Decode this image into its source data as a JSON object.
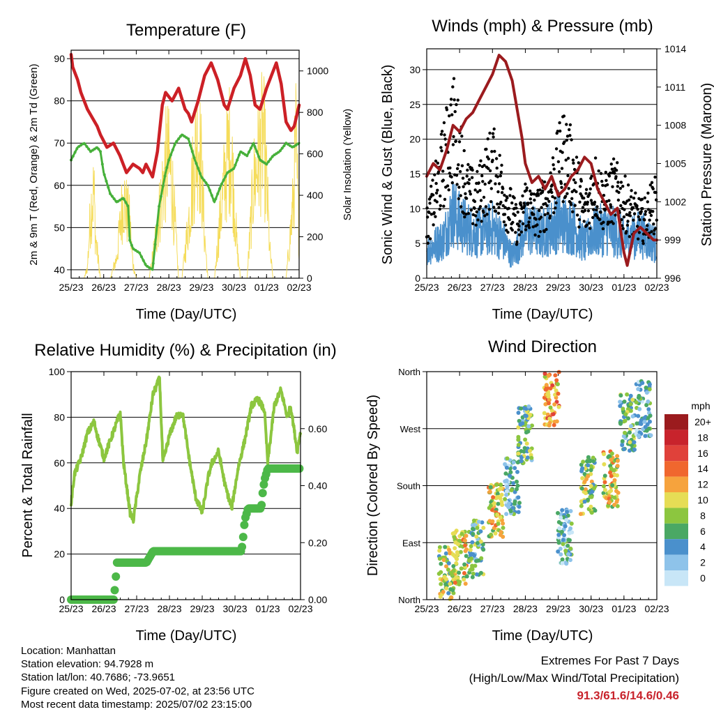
{
  "charts": {
    "temperature": {
      "title": "Temperature (F)",
      "ylabel_left": "2m & 9m T (Red, Orange) & 2m Td (Green)",
      "ylabel_right": "Solar Insolation (Yellow)",
      "xlabel": "Time (Day/UTC)"
    },
    "winds": {
      "title": "Winds (mph) & Pressure (mb)",
      "ylabel_left": "Sonic Wind & Gust (Blue, Black)",
      "ylabel_right": "Station Pressure (Maroon)",
      "xlabel": "Time (Day/UTC)"
    },
    "humidity": {
      "title": "Relative Humidity (%) & Precipitation (in)",
      "ylabel_left": "Percent & Total Rainfall",
      "xlabel": "Time (Day/UTC)"
    },
    "direction": {
      "title": "Wind Direction",
      "ylabel_left": "Direction (Colored By Speed)",
      "xlabel": "Time (Day/UTC)",
      "colorbar_title": "mph"
    }
  },
  "info": {
    "location": "Location: Manhattan",
    "elevation": "Station elevation: 94.7928 m",
    "latlon": "Station lat/lon: 40.7686; -73.9651",
    "created": "Figure created on Wed, 2025-07-02, at 23:56 UTC",
    "recent": "Most recent data timestamp: 2025/07/02 23:15:00"
  },
  "extremes": {
    "line1": "Extremes For Past 7 Days",
    "line2": "(High/Low/Max Wind/Total Precipitation)",
    "values": "91.3/61.6/14.6/0.46"
  },
  "colors": {
    "temp": "#cc2026",
    "dewpoint": "#46b03a",
    "solar": "#f5dc5a",
    "wind": "#4a90cc",
    "gust": "#000000",
    "pressure": "#9b1b1e",
    "rh": "#8cc63f",
    "precip": "#4cb848"
  },
  "chart_data": [
    {
      "type": "line",
      "title": "Temperature (F)",
      "xlabel": "Time (Day/UTC)",
      "ylabel": "2m & 9m T (Red, Orange) & 2m Td (Green)",
      "ylabel_right": "Solar Insolation (Yellow)",
      "x_ticks": [
        "25/23",
        "26/23",
        "27/23",
        "28/23",
        "29/23",
        "30/23",
        "01/23",
        "02/23"
      ],
      "xlim": [
        0,
        7
      ],
      "ylim": [
        38,
        92
      ],
      "y_ticks": [
        40,
        50,
        60,
        70,
        80,
        90
      ],
      "ylim_right": [
        0,
        1100
      ],
      "y_ticks_right": [
        0,
        200,
        400,
        600,
        800,
        1000
      ],
      "series": [
        {
          "name": "2m T",
          "x": [
            0,
            0.05,
            0.2,
            0.3,
            0.5,
            0.8,
            0.9,
            1.1,
            1.3,
            1.5,
            1.6,
            1.7,
            1.9,
            2.1,
            2.2,
            2.3,
            2.5,
            2.65,
            2.8,
            2.9,
            3.1,
            3.3,
            3.5,
            3.6,
            3.7,
            3.9,
            4.1,
            4.3,
            4.5,
            4.7,
            4.8,
            5.0,
            5.2,
            5.35,
            5.5,
            5.65,
            5.8,
            6.0,
            6.15,
            6.3,
            6.45,
            6.6,
            6.75,
            6.85,
            7.0
          ],
          "y": [
            91,
            88,
            85,
            82,
            78,
            74,
            72,
            69,
            70,
            67,
            65,
            63,
            65,
            64,
            63,
            65,
            62,
            68,
            79,
            82,
            80,
            83,
            78,
            77,
            75,
            80,
            86,
            89,
            85,
            79,
            78,
            83,
            86,
            90,
            86,
            79,
            78,
            83,
            86,
            89,
            84,
            75,
            73,
            74,
            79
          ]
        },
        {
          "name": "2m Td",
          "x": [
            0,
            0.2,
            0.4,
            0.6,
            0.8,
            0.9,
            1.0,
            1.2,
            1.4,
            1.6,
            1.75,
            1.8,
            1.9,
            2.1,
            2.3,
            2.5,
            2.7,
            2.9,
            3.0,
            3.2,
            3.4,
            3.6,
            3.8,
            4.0,
            4.2,
            4.4,
            4.6,
            4.8,
            5.0,
            5.2,
            5.4,
            5.6,
            5.8,
            6.0,
            6.2,
            6.4,
            6.6,
            6.8,
            7.0
          ],
          "y": [
            66,
            69,
            70,
            68,
            69,
            68,
            63,
            58,
            56,
            57,
            55,
            47,
            45,
            44,
            41,
            40,
            55,
            63,
            66,
            70,
            72,
            71,
            66,
            62,
            60,
            56,
            60,
            63,
            64,
            68,
            67,
            70,
            66,
            65,
            67,
            68,
            70,
            69,
            70
          ]
        },
        {
          "name": "Solar Insolation",
          "axis": "right",
          "x": [
            0,
            0.4,
            0.5,
            0.6,
            0.7,
            0.75,
            0.8,
            0.9,
            1.0,
            1.2,
            1.4,
            1.6,
            1.8,
            1.9,
            2.0,
            2.1,
            2.2,
            2.4,
            2.6,
            2.8,
            2.95,
            3.1,
            3.2,
            3.3,
            3.4,
            3.6,
            3.8,
            3.9,
            4.0,
            4.1,
            4.2,
            4.4,
            4.6,
            4.8,
            4.9,
            5.0,
            5.1,
            5.2,
            5.4,
            5.6,
            5.8,
            5.9,
            6.0,
            6.1,
            6.2,
            6.4,
            6.6,
            6.8,
            6.9,
            7.0
          ],
          "y": [
            0,
            0,
            80,
            500,
            650,
            300,
            200,
            0,
            0,
            0,
            150,
            600,
            400,
            100,
            0,
            0,
            0,
            0,
            300,
            650,
            900,
            700,
            350,
            0,
            0,
            400,
            900,
            1080,
            800,
            300,
            0,
            0,
            500,
            900,
            1000,
            600,
            200,
            0,
            0,
            700,
            950,
            1050,
            700,
            200,
            0,
            0,
            0,
            500,
            1000,
            300
          ]
        }
      ]
    },
    {
      "type": "line",
      "title": "Winds (mph) & Pressure (mb)",
      "xlabel": "Time (Day/UTC)",
      "ylabel": "Sonic Wind & Gust (Blue, Black)",
      "ylabel_right": "Station Pressure (Maroon)",
      "x_ticks": [
        "25/23",
        "26/23",
        "27/23",
        "28/23",
        "29/23",
        "30/23",
        "01/23",
        "02/23"
      ],
      "xlim": [
        0,
        7
      ],
      "ylim": [
        0,
        33
      ],
      "y_ticks": [
        0,
        5,
        10,
        15,
        20,
        25,
        30
      ],
      "ylim_right": [
        996,
        1014
      ],
      "y_ticks_right": [
        996,
        999,
        1002,
        1005,
        1008,
        1011,
        1014
      ],
      "series": [
        {
          "name": "Sonic Wind",
          "x": [
            0,
            0.5,
            0.8,
            1.0,
            1.5,
            2.0,
            2.3,
            2.6,
            2.8,
            3.0,
            3.5,
            4.0,
            4.5,
            4.8,
            5.0,
            5.5,
            6.0,
            6.5,
            7.0
          ],
          "y": [
            5,
            7,
            12,
            10,
            8,
            9,
            7,
            4,
            6,
            9,
            8,
            10,
            9,
            6,
            8,
            9,
            7,
            8,
            6
          ]
        },
        {
          "name": "Gust",
          "x": [
            0,
            0.3,
            0.5,
            0.8,
            1.0,
            1.2,
            1.5,
            1.8,
            2.0,
            2.3,
            2.6,
            2.8,
            3.0,
            3.3,
            3.6,
            3.9,
            4.2,
            4.5,
            4.8,
            5.1,
            5.4,
            5.7,
            6.0,
            6.3,
            6.6,
            6.8,
            7.0
          ],
          "y": [
            8,
            14,
            18,
            24,
            20,
            14,
            12,
            16,
            18,
            14,
            10,
            8,
            12,
            10,
            12,
            16,
            20,
            16,
            10,
            15,
            12,
            14,
            12,
            10,
            9,
            11,
            12
          ]
        },
        {
          "name": "Station Pressure",
          "axis": "right",
          "x": [
            0,
            0.2,
            0.4,
            0.6,
            0.8,
            1.0,
            1.2,
            1.4,
            1.6,
            1.8,
            2.0,
            2.2,
            2.4,
            2.6,
            2.7,
            2.9,
            3.0,
            3.2,
            3.4,
            3.6,
            3.8,
            4.0,
            4.2,
            4.4,
            4.6,
            4.8,
            5.0,
            5.2,
            5.4,
            5.6,
            5.8,
            6.0,
            6.1,
            6.3,
            6.5,
            6.7,
            6.9,
            7.0
          ],
          "y": [
            1004,
            1005,
            1004.5,
            1006,
            1008,
            1007.5,
            1008.5,
            1009,
            1010,
            1011,
            1012,
            1013.5,
            1013,
            1011.5,
            1010,
            1007,
            1005,
            1003.5,
            1004,
            1003,
            1004,
            1002.5,
            1003,
            1004,
            1004.5,
            1005.5,
            1005,
            1003,
            1002,
            1001,
            1001.5,
            998,
            997,
            999.5,
            1000,
            999.5,
            999,
            999
          ]
        }
      ]
    },
    {
      "type": "line",
      "title": "Relative Humidity (%) & Precipitation (in)",
      "xlabel": "Time (Day/UTC)",
      "ylabel": "Percent & Total Rainfall",
      "x_ticks": [
        "25/23",
        "26/23",
        "27/23",
        "28/23",
        "29/23",
        "30/23",
        "01/23",
        "02/23"
      ],
      "xlim": [
        0,
        7
      ],
      "ylim": [
        0,
        100
      ],
      "y_ticks": [
        0,
        20,
        40,
        60,
        80,
        100
      ],
      "ylim_right": [
        0,
        0.8
      ],
      "y_ticks_right": [
        "0.00",
        "0.20",
        "0.40",
        "0.60"
      ],
      "series": [
        {
          "name": "Relative Humidity",
          "x": [
            0,
            0.1,
            0.3,
            0.5,
            0.7,
            0.8,
            1.0,
            1.2,
            1.4,
            1.5,
            1.6,
            1.8,
            1.9,
            2.1,
            2.3,
            2.5,
            2.7,
            2.8,
            3.0,
            3.2,
            3.4,
            3.6,
            3.8,
            4.0,
            4.2,
            4.3,
            4.5,
            4.7,
            4.9,
            5.1,
            5.3,
            5.5,
            5.7,
            5.9,
            6.0,
            6.2,
            6.4,
            6.6,
            6.7,
            6.8,
            6.9,
            7.0
          ],
          "y": [
            42,
            55,
            62,
            73,
            78,
            72,
            62,
            70,
            78,
            82,
            60,
            38,
            35,
            55,
            70,
            90,
            97,
            60,
            72,
            80,
            82,
            62,
            45,
            38,
            55,
            60,
            65,
            50,
            40,
            58,
            70,
            85,
            88,
            83,
            60,
            85,
            92,
            80,
            85,
            75,
            65,
            74
          ]
        },
        {
          "name": "Total Precipitation",
          "axis": "right",
          "x": [
            0,
            1.3,
            1.32,
            1.35,
            1.4,
            2.3,
            2.4,
            2.5,
            3.0,
            4.0,
            5.2,
            5.25,
            5.3,
            5.4,
            5.8,
            5.85,
            5.9,
            6.0,
            7.0
          ],
          "y": [
            0,
            0,
            0.02,
            0.06,
            0.13,
            0.13,
            0.15,
            0.17,
            0.17,
            0.17,
            0.17,
            0.22,
            0.28,
            0.32,
            0.32,
            0.38,
            0.42,
            0.46,
            0.46
          ]
        }
      ]
    },
    {
      "type": "scatter",
      "title": "Wind Direction",
      "xlabel": "Time (Day/UTC)",
      "ylabel": "Direction (Colored By Speed)",
      "x_ticks": [
        "25/23",
        "26/23",
        "27/23",
        "28/23",
        "29/23",
        "30/23",
        "01/23",
        "02/23"
      ],
      "xlim": [
        0,
        7
      ],
      "y_ticks": [
        "North",
        "East",
        "South",
        "West",
        "North"
      ],
      "ylim": [
        0,
        360
      ],
      "colorbar": {
        "title": "mph",
        "labels": [
          "20+",
          "18",
          "16",
          "14",
          "12",
          "10",
          "8",
          "6",
          "4",
          "2",
          "0"
        ],
        "colors": [
          "#9b1b1e",
          "#c8232c",
          "#e0413a",
          "#f0672e",
          "#f6a33d",
          "#e6dd55",
          "#8cc63f",
          "#4aa864",
          "#4a90cc",
          "#8ec3ea",
          "#c8e6f7"
        ]
      },
      "clusters": [
        {
          "x": 0.6,
          "y": 40,
          "speed": 8
        },
        {
          "x": 1.0,
          "y": 65,
          "speed": 10
        },
        {
          "x": 1.5,
          "y": 80,
          "speed": 6
        },
        {
          "x": 2.1,
          "y": 140,
          "speed": 10
        },
        {
          "x": 2.6,
          "y": 180,
          "speed": 4
        },
        {
          "x": 3.0,
          "y": 260,
          "speed": 6
        },
        {
          "x": 3.8,
          "y": 320,
          "speed": 12
        },
        {
          "x": 4.2,
          "y": 100,
          "speed": 4
        },
        {
          "x": 4.9,
          "y": 180,
          "speed": 8
        },
        {
          "x": 5.6,
          "y": 190,
          "speed": 10
        },
        {
          "x": 6.1,
          "y": 280,
          "speed": 6
        },
        {
          "x": 6.6,
          "y": 300,
          "speed": 4
        }
      ]
    }
  ]
}
